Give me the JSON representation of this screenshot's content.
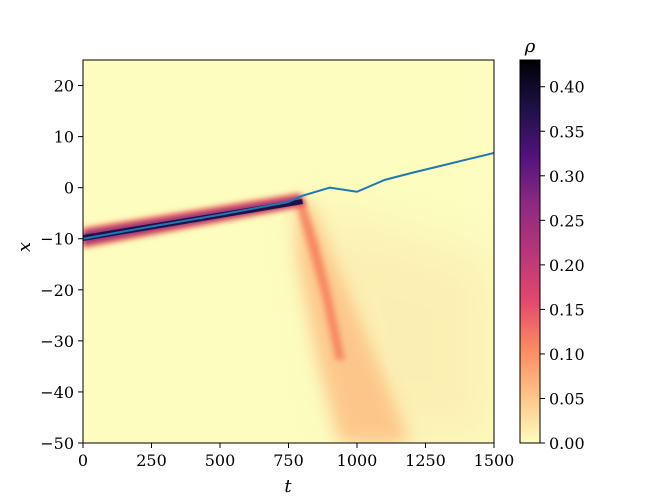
{
  "chart_data": {
    "type": "heatmap",
    "xlabel": "t",
    "ylabel": "x",
    "xlim": [
      0,
      1500
    ],
    "ylim": [
      -50,
      25
    ],
    "x_ticks": [
      0,
      250,
      500,
      750,
      1000,
      1250,
      1500
    ],
    "y_ticks": [
      20,
      10,
      0,
      -10,
      -20,
      -30,
      -40,
      -50
    ],
    "x_tick_labels": [
      "0",
      "250",
      "500",
      "750",
      "1000",
      "1250",
      "1500"
    ],
    "y_tick_labels": [
      "20",
      "10",
      "0",
      "−10",
      "−20",
      "−30",
      "−40",
      "−50"
    ],
    "colorbar": {
      "label": "ρ",
      "range": [
        0,
        0.43
      ],
      "ticks": [
        0,
        0.05,
        0.1,
        0.15,
        0.2,
        0.25,
        0.3,
        0.35,
        0.4
      ],
      "tick_labels": [
        "0.00",
        "0.05",
        "0.10",
        "0.15",
        "0.20",
        "0.25",
        "0.30",
        "0.35",
        "0.40"
      ],
      "colormap": "magma_r",
      "colors": [
        "#fcfdbf",
        "#fec287",
        "#fb8861",
        "#e3466e",
        "#b63679",
        "#8c2981",
        "#51127c",
        "#1d1147",
        "#000004"
      ]
    },
    "density_band": {
      "before_transition": {
        "t": [
          0,
          780
        ],
        "center_x": [
          -10,
          -3.3
        ]
      },
      "after_transition": {
        "t": [
          780,
          1500
        ],
        "spreading": "downward"
      }
    },
    "series": [
      {
        "type": "line",
        "color": "#1f77b4",
        "x": [
          0,
          250,
          500,
          750,
          800,
          900,
          1000,
          1100,
          1200,
          1300,
          1400,
          1500
        ],
        "y": [
          -10,
          -7.6,
          -5.3,
          -2.8,
          -1.6,
          0,
          -0.8,
          1.5,
          2.9,
          4.2,
          5.5,
          6.8
        ]
      }
    ]
  }
}
